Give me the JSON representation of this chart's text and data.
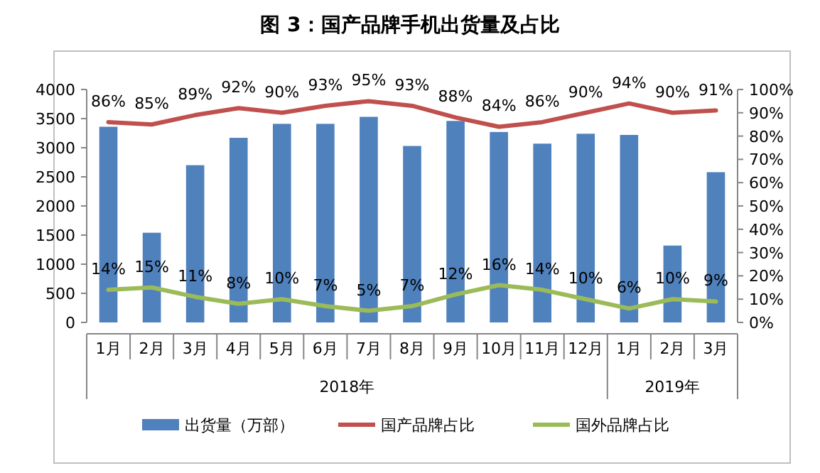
{
  "chart_data": {
    "type": "bar",
    "title": "图 3：国产品牌手机出货量及占比",
    "categories": [
      "1月",
      "2月",
      "3月",
      "4月",
      "5月",
      "6月",
      "7月",
      "8月",
      "9月",
      "10月",
      "11月",
      "12月",
      "1月",
      "2月",
      "3月"
    ],
    "series": [
      {
        "name": "出货量（万部）",
        "color": "#4f81bd",
        "values": [
          3360,
          1540,
          2700,
          3170,
          3410,
          3410,
          3530,
          3030,
          3460,
          3270,
          3070,
          3240,
          3220,
          1320,
          2580
        ]
      },
      {
        "name": "国产品牌占比",
        "type": "line",
        "axis": "y2",
        "color": "#c0504d",
        "values": [
          86,
          85,
          89,
          92,
          90,
          93,
          95,
          93,
          88,
          84,
          86,
          90,
          94,
          90,
          91
        ],
        "value_labels": [
          "86%",
          "85%",
          "89%",
          "92%",
          "90%",
          "93%",
          "95%",
          "93%",
          "88%",
          "84%",
          "86%",
          "90%",
          "94%",
          "90%",
          "91%"
        ]
      },
      {
        "name": "国外品牌占比",
        "type": "line",
        "axis": "y2",
        "color": "#9bbb59",
        "values": [
          14,
          15,
          11,
          8,
          10,
          7,
          5,
          7,
          12,
          16,
          14,
          10,
          6,
          10,
          9
        ],
        "value_labels": [
          "14%",
          "15%",
          "11%",
          "8%",
          "10%",
          "7%",
          "5%",
          "7%",
          "12%",
          "16%",
          "14%",
          "10%",
          "6%",
          "10%",
          "9%"
        ]
      }
    ],
    "ylim": [
      0,
      4000
    ],
    "yticks": [
      0,
      500,
      1000,
      1500,
      2000,
      2500,
      3000,
      3500,
      4000
    ],
    "y2lim": [
      0,
      100
    ],
    "y2ticks": [
      {
        "value": 0,
        "label": "0%"
      },
      {
        "value": 10,
        "label": "10%"
      },
      {
        "value": 20,
        "label": "20%"
      },
      {
        "value": 30,
        "label": "30%"
      },
      {
        "value": 40,
        "label": "40%"
      },
      {
        "value": 50,
        "label": "50%"
      },
      {
        "value": 60,
        "label": "60%"
      },
      {
        "value": 70,
        "label": "70%"
      },
      {
        "value": 80,
        "label": "80%"
      },
      {
        "value": 90,
        "label": "90%"
      },
      {
        "value": 100,
        "label": "100%"
      }
    ],
    "annotations": [
      "2018年",
      "2019年"
    ],
    "legend": "bottom",
    "grid": false,
    "marker": "none",
    "line_style": "solid"
  }
}
